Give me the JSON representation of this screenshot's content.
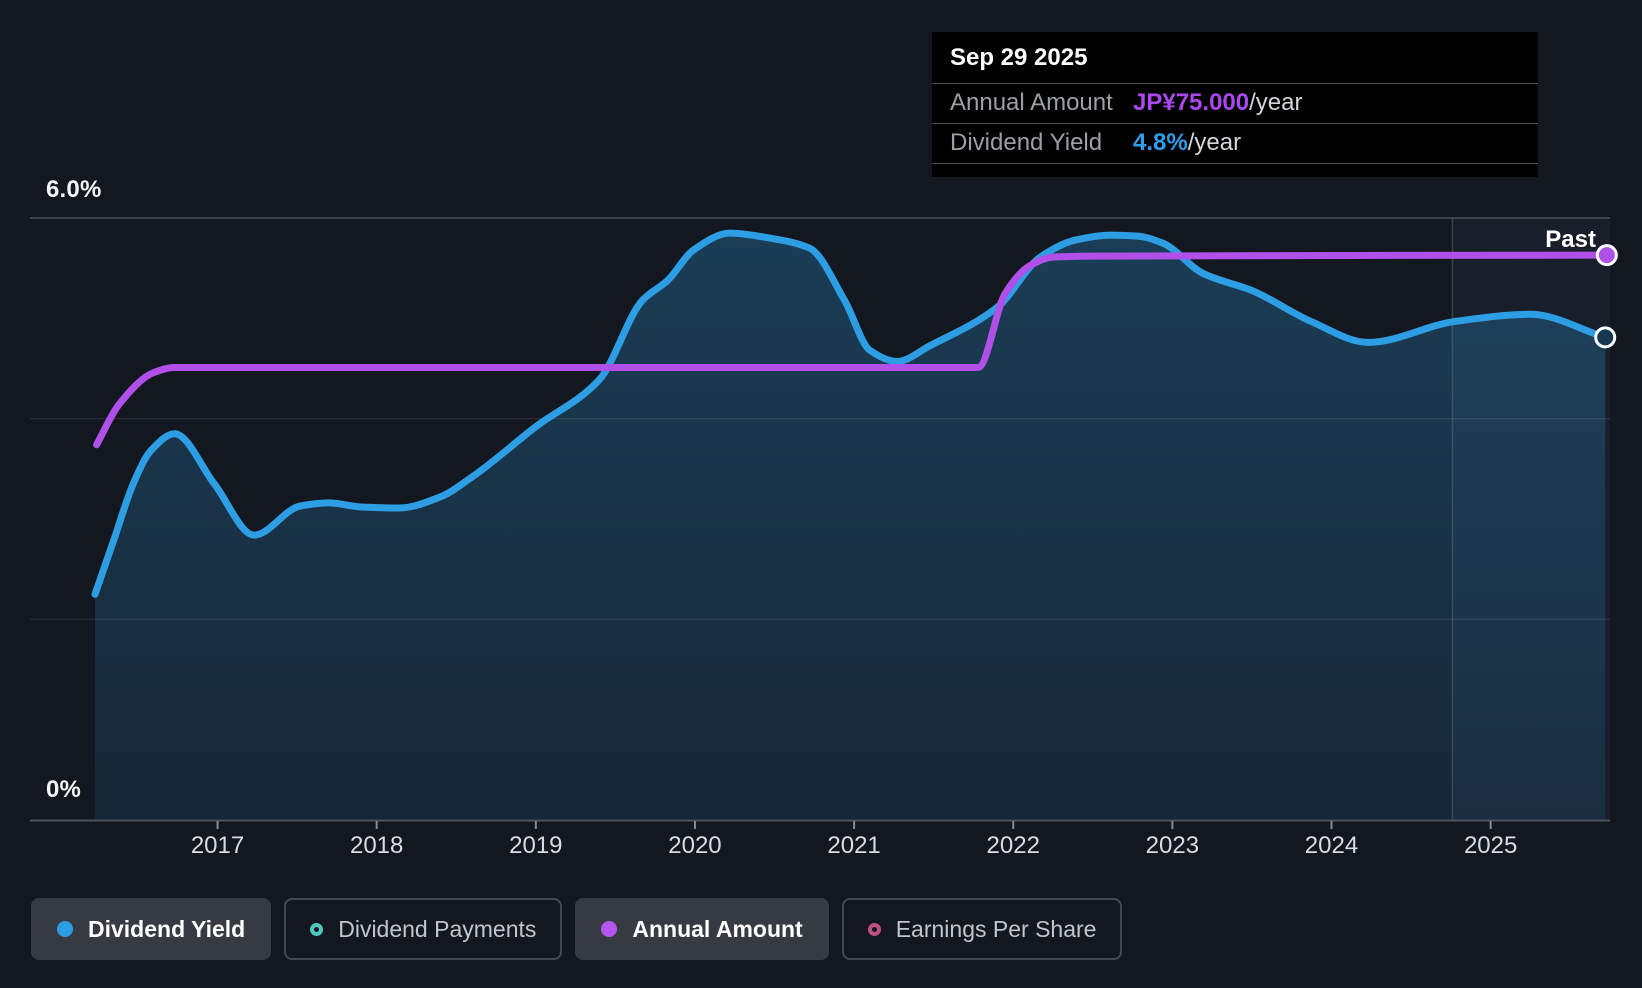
{
  "past_label": "Past",
  "tooltip": {
    "date": "Sep 29 2025",
    "rows": [
      {
        "label": "Annual Amount",
        "value": "JP¥75.000",
        "suffix": "/year",
        "value_color": "#ab47f0"
      },
      {
        "label": "Dividend Yield",
        "value": "4.8%",
        "suffix": "/year",
        "value_color": "#2e9fec"
      }
    ]
  },
  "legend": {
    "items": [
      {
        "label": "Dividend Yield",
        "style": "dot",
        "color": "#2d9de4",
        "active": true
      },
      {
        "label": "Dividend Payments",
        "style": "ring",
        "color": "#4fc8bc",
        "active": false
      },
      {
        "label": "Annual Amount",
        "style": "dot",
        "color": "#b556f2",
        "active": true
      },
      {
        "label": "Earnings Per Share",
        "style": "ring",
        "color": "#c04f81",
        "active": false
      }
    ]
  },
  "chart_data": {
    "type": "area",
    "title": "Dividend history",
    "x_axis": {
      "ticks": [
        2017,
        2018,
        2019,
        2020,
        2021,
        2022,
        2023,
        2024,
        2025
      ],
      "range": [
        2016.23,
        2025.75
      ]
    },
    "y_axis": {
      "top_label": "6.0%",
      "bottom_label": "0%",
      "range": [
        0,
        6
      ],
      "unit": "%",
      "gridlines": [
        2,
        4,
        6
      ]
    },
    "past_marker_x": 2024.76,
    "colors": {
      "yield_line": "#2d9de4",
      "amount_line": "#b050e8",
      "area_fill": "#2e96d6",
      "tooltip_bg": "#000000"
    },
    "series": [
      {
        "name": "Dividend Yield",
        "color": "#2d9de4",
        "kind": "area-line",
        "end_marker": "hollow",
        "current_value": "4.8%/year",
        "points": [
          [
            2016.23,
            2.25
          ],
          [
            2016.35,
            2.8
          ],
          [
            2016.47,
            3.35
          ],
          [
            2016.58,
            3.68
          ],
          [
            2016.73,
            3.85
          ],
          [
            2016.98,
            3.35
          ],
          [
            2017.23,
            2.84
          ],
          [
            2017.52,
            3.13
          ],
          [
            2017.7,
            3.16
          ],
          [
            2017.9,
            3.12
          ],
          [
            2018.14,
            3.11
          ],
          [
            2018.4,
            3.22
          ],
          [
            2018.6,
            3.42
          ],
          [
            2019.0,
            3.92
          ],
          [
            2019.4,
            4.39
          ],
          [
            2019.67,
            5.18
          ],
          [
            2019.83,
            5.38
          ],
          [
            2019.99,
            5.68
          ],
          [
            2020.22,
            5.85
          ],
          [
            2020.47,
            5.8
          ],
          [
            2020.72,
            5.7
          ],
          [
            2020.94,
            5.18
          ],
          [
            2021.1,
            4.68
          ],
          [
            2021.27,
            4.57
          ],
          [
            2021.48,
            4.73
          ],
          [
            2021.9,
            5.11
          ],
          [
            2022.17,
            5.61
          ],
          [
            2022.39,
            5.78
          ],
          [
            2022.61,
            5.83
          ],
          [
            2022.78,
            5.82
          ],
          [
            2022.94,
            5.75
          ],
          [
            2023.19,
            5.45
          ],
          [
            2023.51,
            5.27
          ],
          [
            2023.87,
            4.97
          ],
          [
            2024.23,
            4.76
          ],
          [
            2024.78,
            4.97
          ],
          [
            2025.25,
            5.04
          ],
          [
            2025.72,
            4.81
          ]
        ]
      },
      {
        "name": "Annual Amount",
        "color": "#b050e8",
        "kind": "line",
        "end_marker": "solid",
        "current_value": "JP¥75.000/year",
        "scale_note": "plotted on separate amount axis; y given in yield-axis display units",
        "points": [
          [
            2016.24,
            3.74
          ],
          [
            2016.38,
            4.14
          ],
          [
            2016.6,
            4.46
          ],
          [
            2016.73,
            4.51
          ],
          [
            2021.78,
            4.51
          ],
          [
            2021.95,
            5.25
          ],
          [
            2022.11,
            5.53
          ],
          [
            2022.25,
            5.61
          ],
          [
            2022.5,
            5.62
          ],
          [
            2025.73,
            5.63
          ]
        ]
      }
    ]
  }
}
